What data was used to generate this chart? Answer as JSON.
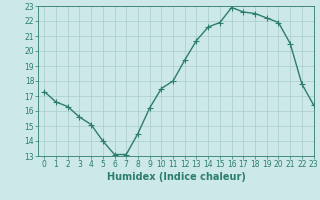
{
  "x": [
    0,
    1,
    2,
    3,
    4,
    5,
    6,
    7,
    8,
    9,
    10,
    11,
    12,
    13,
    14,
    15,
    16,
    17,
    18,
    19,
    20,
    21,
    22,
    23
  ],
  "y": [
    17.3,
    16.6,
    16.3,
    15.6,
    15.1,
    14.0,
    13.1,
    13.1,
    14.5,
    16.2,
    17.5,
    18.0,
    19.4,
    20.7,
    21.6,
    21.9,
    22.9,
    22.6,
    22.5,
    22.2,
    21.9,
    20.5,
    17.8,
    16.4
  ],
  "line_color": "#2d7d6e",
  "marker": "+",
  "marker_size": 4,
  "bg_color": "#cce8e8",
  "grid_color": "#aacccc",
  "xlabel": "Humidex (Indice chaleur)",
  "ylim": [
    13,
    23
  ],
  "xlim": [
    -0.5,
    23
  ],
  "yticks": [
    13,
    14,
    15,
    16,
    17,
    18,
    19,
    20,
    21,
    22,
    23
  ],
  "xticks": [
    0,
    1,
    2,
    3,
    4,
    5,
    6,
    7,
    8,
    9,
    10,
    11,
    12,
    13,
    14,
    15,
    16,
    17,
    18,
    19,
    20,
    21,
    22,
    23
  ],
  "tick_label_fontsize": 5.5,
  "xlabel_fontsize": 7.0,
  "line_width": 1.0,
  "marker_linewidth": 0.8
}
